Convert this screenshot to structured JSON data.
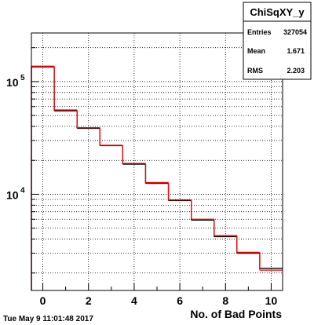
{
  "timestamp": "Tue May  9 11:01:48 2017",
  "stats": {
    "title": "ChiSqXY_y",
    "rows": [
      {
        "label": "Entries",
        "value": "327054"
      },
      {
        "label": "Mean",
        "value": "1.671"
      },
      {
        "label": "RMS",
        "value": "2.203"
      }
    ]
  },
  "colors": {
    "black_series": "#000000",
    "red_series": "#ff0000",
    "grid": "#000000"
  },
  "chart_data": {
    "type": "step",
    "xlabel": "No. of Bad Points",
    "ylabel": "",
    "xlim": [
      -0.5,
      10.5
    ],
    "ylim": [
      1400,
      270000
    ],
    "yscale": "log",
    "grid": true,
    "x_ticks": [
      0,
      2,
      4,
      6,
      8,
      10
    ],
    "y_ticks": [
      {
        "value": 10000,
        "base": "10",
        "exp": "4"
      },
      {
        "value": 100000,
        "base": "10",
        "exp": "5"
      }
    ],
    "bin_edges": [
      -0.5,
      0.5,
      1.5,
      2.5,
      3.5,
      4.5,
      5.5,
      6.5,
      7.5,
      8.5,
      9.5,
      10.5
    ],
    "series": [
      {
        "color": "black",
        "values": [
          135000,
          55000,
          38500,
          27000,
          18500,
          12500,
          8800,
          5900,
          4200,
          3000,
          2200
        ]
      },
      {
        "color": "red",
        "values": [
          137000,
          56000,
          39000,
          27200,
          18800,
          12700,
          8900,
          6000,
          4300,
          3050,
          2120
        ]
      }
    ]
  }
}
